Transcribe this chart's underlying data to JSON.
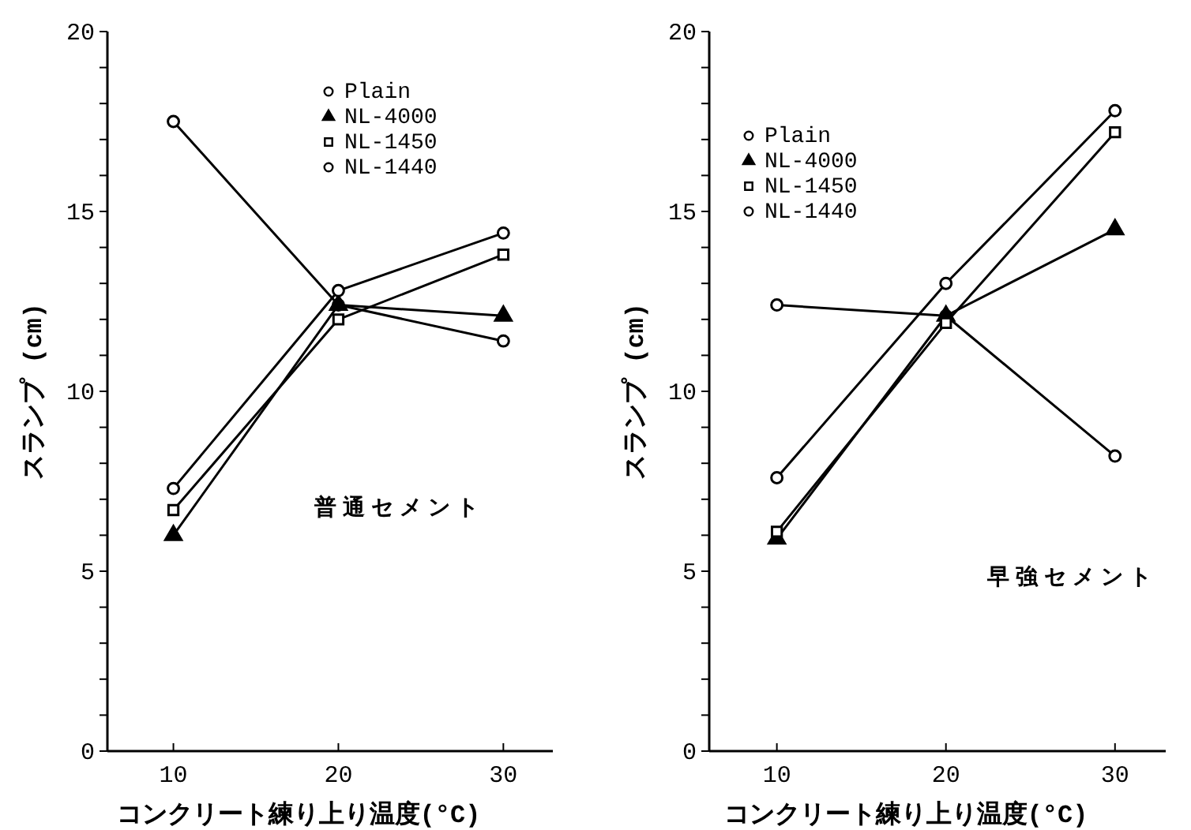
{
  "chart_data": [
    {
      "type": "line",
      "xlabel": "コンクリート練り上り温度(°C)",
      "ylabel": "スランプ (cm)",
      "annotations": [
        "普通セメント"
      ],
      "x": [
        10,
        20,
        30
      ],
      "xlim": [
        6,
        33
      ],
      "xticks": [
        10,
        20,
        30
      ],
      "ylim": [
        0,
        20
      ],
      "yticks": [
        0,
        {
          "value": 1,
          "label": null
        },
        {
          "value": 2,
          "label": null
        },
        {
          "value": 3,
          "label": null
        },
        {
          "value": 4,
          "label": null
        },
        5,
        {
          "value": 6,
          "label": null
        },
        {
          "value": 7,
          "label": null
        },
        {
          "value": 8,
          "label": null
        },
        {
          "value": 9,
          "label": null
        },
        10,
        {
          "value": 11,
          "label": null
        },
        {
          "value": 12,
          "label": null
        },
        {
          "value": 13,
          "label": null
        },
        {
          "value": 14,
          "label": null
        },
        15,
        {
          "value": 16,
          "label": null
        },
        {
          "value": 17,
          "label": null
        },
        {
          "value": 18,
          "label": null
        },
        {
          "value": 19,
          "label": null
        },
        20
      ],
      "grid": false,
      "legend": "top right",
      "line_style": "solid",
      "series": [
        {
          "name": "Plain",
          "color": "#000000",
          "marker": "circle",
          "values": [
            17.5,
            12.4,
            11.4
          ]
        },
        {
          "name": "NL-4000",
          "color": "#000000",
          "marker": "triangle",
          "values": [
            6.0,
            12.4,
            12.1
          ]
        },
        {
          "name": "NL-1450",
          "color": "#000000",
          "marker": "square",
          "values": [
            6.7,
            12.0,
            13.8
          ]
        },
        {
          "name": "NL-1440",
          "color": "#000000",
          "marker": "circle",
          "values": [
            7.3,
            12.8,
            14.4
          ]
        }
      ]
    },
    {
      "type": "line",
      "xlabel": "コンクリート練り上り温度(°C)",
      "ylabel": "スランプ (cm)",
      "annotations": [
        "早強セメント"
      ],
      "x": [
        10,
        20,
        30
      ],
      "xlim": [
        6,
        33
      ],
      "xticks": [
        10,
        20,
        30
      ],
      "ylim": [
        0,
        20
      ],
      "yticks": [
        0,
        {
          "value": 1,
          "label": null
        },
        {
          "value": 2,
          "label": null
        },
        {
          "value": 3,
          "label": null
        },
        {
          "value": 4,
          "label": null
        },
        5,
        {
          "value": 6,
          "label": null
        },
        {
          "value": 7,
          "label": null
        },
        {
          "value": 8,
          "label": null
        },
        {
          "value": 9,
          "label": null
        },
        10,
        {
          "value": 11,
          "label": null
        },
        {
          "value": 12,
          "label": null
        },
        {
          "value": 13,
          "label": null
        },
        {
          "value": 14,
          "label": null
        },
        15,
        {
          "value": 16,
          "label": null
        },
        {
          "value": 17,
          "label": null
        },
        {
          "value": 18,
          "label": null
        },
        {
          "value": 19,
          "label": null
        },
        20
      ],
      "grid": false,
      "legend": "top left",
      "line_style": "solid",
      "series": [
        {
          "name": "Plain",
          "color": "#000000",
          "marker": "circle",
          "values": [
            12.4,
            12.1,
            8.2
          ]
        },
        {
          "name": "NL-4000",
          "color": "#000000",
          "marker": "triangle",
          "values": [
            5.9,
            12.1,
            14.5
          ]
        },
        {
          "name": "NL-1450",
          "color": "#000000",
          "marker": "square",
          "values": [
            6.1,
            11.9,
            17.2
          ]
        },
        {
          "name": "NL-1440",
          "color": "#000000",
          "marker": "circle",
          "values": [
            7.6,
            13.0,
            17.8
          ]
        }
      ]
    }
  ]
}
